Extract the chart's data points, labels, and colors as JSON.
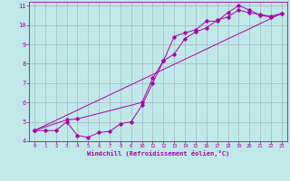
{
  "xlabel": "Windchill (Refroidissement éolien,°C)",
  "xlim": [
    -0.5,
    23.5
  ],
  "ylim": [
    4,
    11.2
  ],
  "xticks": [
    0,
    1,
    2,
    3,
    4,
    5,
    6,
    7,
    8,
    9,
    10,
    11,
    12,
    13,
    14,
    15,
    16,
    17,
    18,
    19,
    20,
    21,
    22,
    23
  ],
  "yticks": [
    4,
    5,
    6,
    7,
    8,
    9,
    10,
    11
  ],
  "bg_color": "#c0e8e8",
  "line_color": "#aa00aa",
  "grid_color": "#99aabb",
  "line1_x": [
    0,
    1,
    2,
    3,
    4,
    5,
    6,
    7,
    8,
    9,
    10,
    11,
    12,
    13,
    14,
    15,
    16,
    17,
    18,
    19,
    20,
    21,
    22,
    23
  ],
  "line1_y": [
    4.55,
    4.55,
    4.55,
    5.0,
    4.3,
    4.2,
    4.45,
    4.5,
    4.9,
    5.0,
    5.85,
    7.0,
    8.15,
    9.4,
    9.6,
    9.75,
    10.2,
    10.2,
    10.65,
    11.0,
    10.78,
    10.5,
    10.42,
    10.6
  ],
  "line2_x": [
    0,
    3,
    4,
    10,
    11,
    12,
    13,
    14,
    15,
    16,
    17,
    18,
    19,
    20,
    21,
    22,
    23
  ],
  "line2_y": [
    4.55,
    5.1,
    5.15,
    6.0,
    7.25,
    8.15,
    8.5,
    9.3,
    9.65,
    9.85,
    10.25,
    10.42,
    10.78,
    10.63,
    10.55,
    10.45,
    10.6
  ],
  "line3_x": [
    0,
    23
  ],
  "line3_y": [
    4.55,
    10.6
  ]
}
